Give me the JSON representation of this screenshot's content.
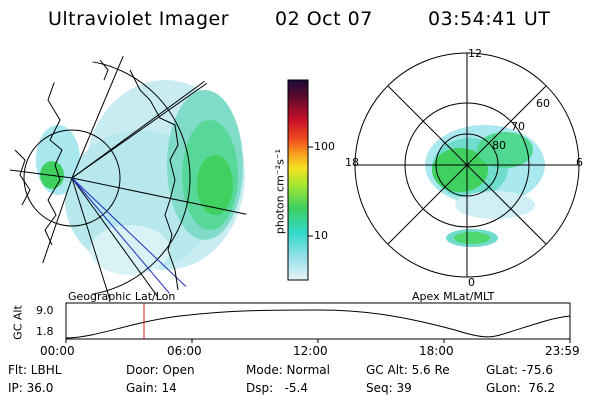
{
  "header": {
    "instrument": "Ultraviolet Imager",
    "date": "02 Oct 07",
    "time": "03:54:41 UT"
  },
  "left_panel": {
    "caption": "Geographic Lat/Lon"
  },
  "right_panel": {
    "caption": "Apex MLat/MLT",
    "mlt_labels": [
      "12",
      "18",
      "6",
      "0"
    ],
    "lat_labels": [
      "60",
      "70",
      "80"
    ]
  },
  "colorbar": {
    "unit_label": "photon cm⁻²s⁻¹",
    "ticks": [
      "100",
      "10"
    ],
    "scale": "log",
    "colors": [
      "#1a0a3a",
      "#6a0a2a",
      "#c8102a",
      "#f05020",
      "#f8a020",
      "#f8e020",
      "#a8e830",
      "#40d060",
      "#30d8c8",
      "#90e0e8",
      "#e8f4f8"
    ]
  },
  "orbit_plot": {
    "ylabel": "GC Alt",
    "yticks": [
      "9.0",
      "1.8"
    ],
    "xticks": [
      "00:00",
      "06:00",
      "12:00",
      "18:00",
      "23:59"
    ],
    "current_time_marker": "03:54:41"
  },
  "status": {
    "row1": {
      "filter": "Flt: LBHL",
      "door": "Door: Open",
      "mode": "Mode: Normal",
      "gcalt": "GC Alt: 5.6 Re",
      "glat": "GLat: -75.6"
    },
    "row2": {
      "ip": "IP: 36.0",
      "gain": "Gain: 14",
      "dsp": "Dsp:   -5.4",
      "seq": "Seq: 39",
      "glon": "GLon:  76.2"
    }
  }
}
